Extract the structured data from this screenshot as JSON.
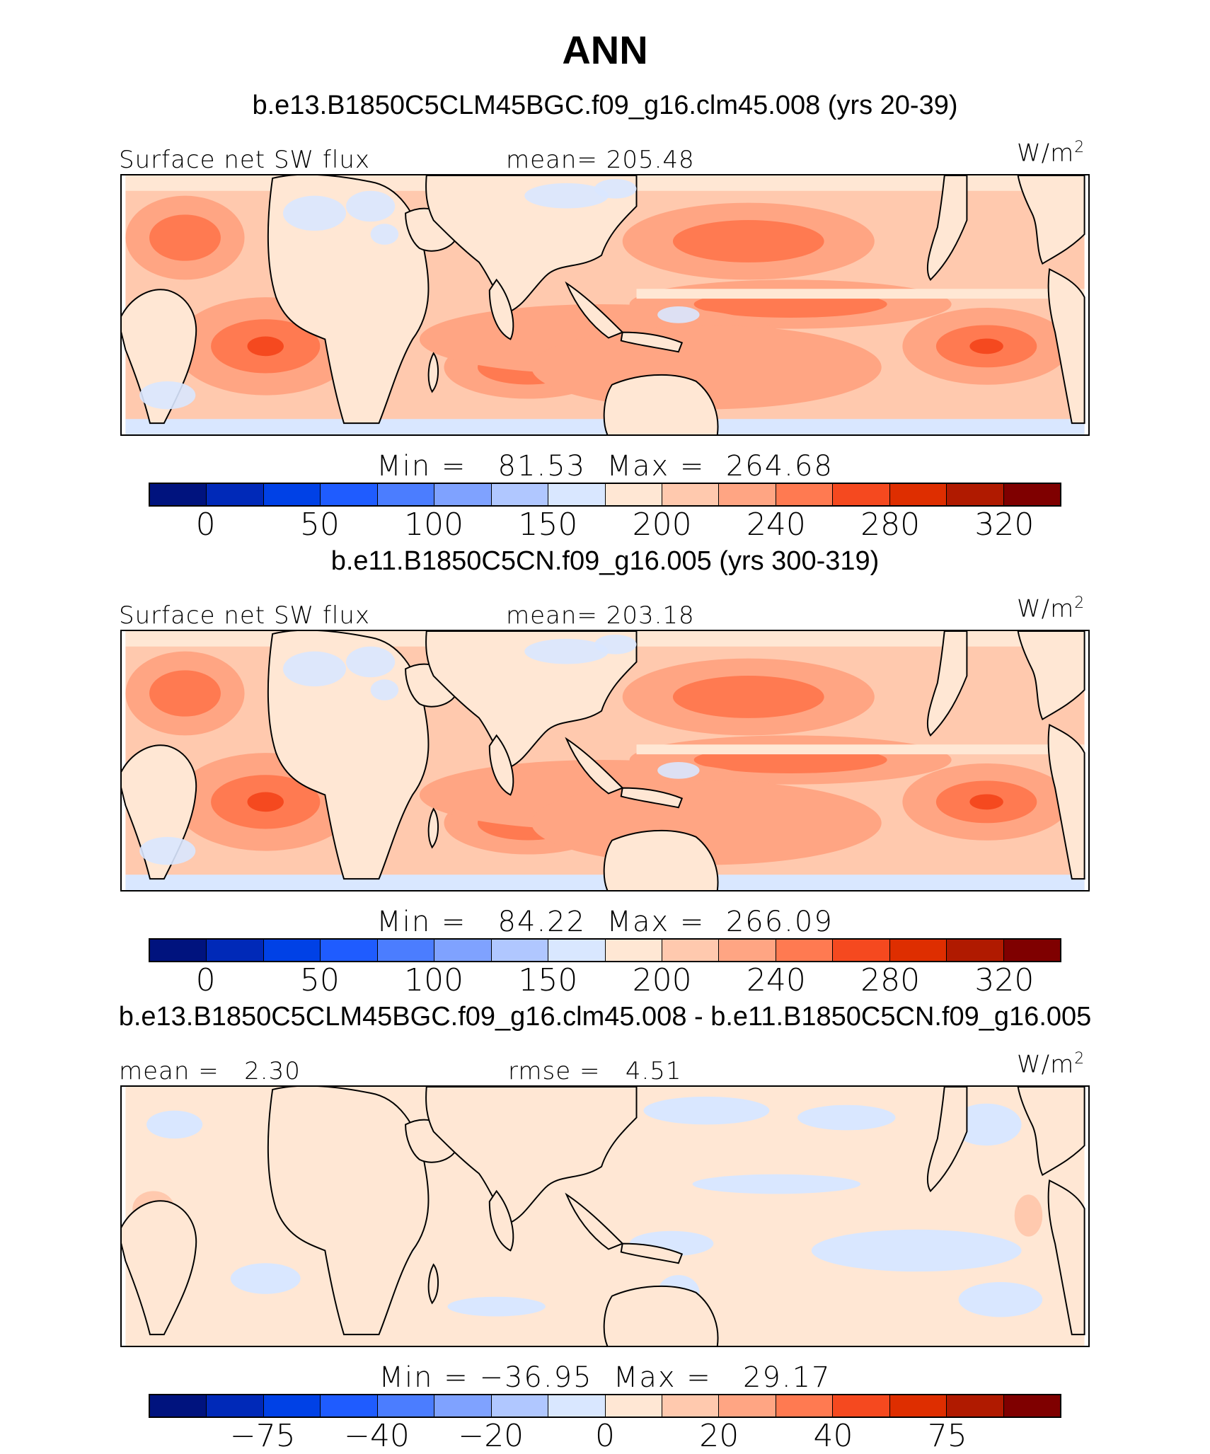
{
  "title": "ANN",
  "colors": {
    "scale": [
      "#00137e",
      "#0029b8",
      "#0041e6",
      "#1f5cff",
      "#4b7dff",
      "#7fa2ff",
      "#b0c7ff",
      "#d9e7ff",
      "#ffe7d4",
      "#ffc9ae",
      "#ffa583",
      "#ff7a51",
      "#f5491f",
      "#de2e00",
      "#b01a00",
      "#7f0000"
    ],
    "ocean_base": "#ffd9c4",
    "coast": "#000000"
  },
  "panels": [
    {
      "case": "b.e13.B1850C5CLM45BGC.f09_g16.clm45.008 (yrs 20-39)",
      "left_label": "Surface net SW flux",
      "mid_label": "mean= 205.48",
      "unit": "W/m",
      "unit_sup": "2",
      "minmax": "Min =   81.53  Max =  264.68",
      "ticks": [
        "0",
        "50",
        "100",
        "150",
        "200",
        "240",
        "280",
        "320"
      ],
      "mode": "abs"
    },
    {
      "case": "b.e11.B1850C5CN.f09_g16.005 (yrs 300-319)",
      "left_label": "Surface net SW flux",
      "mid_label": "mean= 203.18",
      "unit": "W/m",
      "unit_sup": "2",
      "minmax": "Min =   84.22  Max =  266.09",
      "ticks": [
        "0",
        "50",
        "100",
        "150",
        "200",
        "240",
        "280",
        "320"
      ],
      "mode": "abs"
    },
    {
      "case": "b.e13.B1850C5CLM45BGC.f09_g16.clm45.008 - b.e11.B1850C5CN.f09_g16.005",
      "left_label": "mean =   2.30",
      "mid_label": "rmse =   4.51",
      "unit": "W/m",
      "unit_sup": "2",
      "minmax": "Min = −36.95  Max =   29.17",
      "ticks": [
        "−75",
        "−40",
        "−20",
        "0",
        "20",
        "40",
        "75"
      ],
      "mode": "diff"
    }
  ]
}
